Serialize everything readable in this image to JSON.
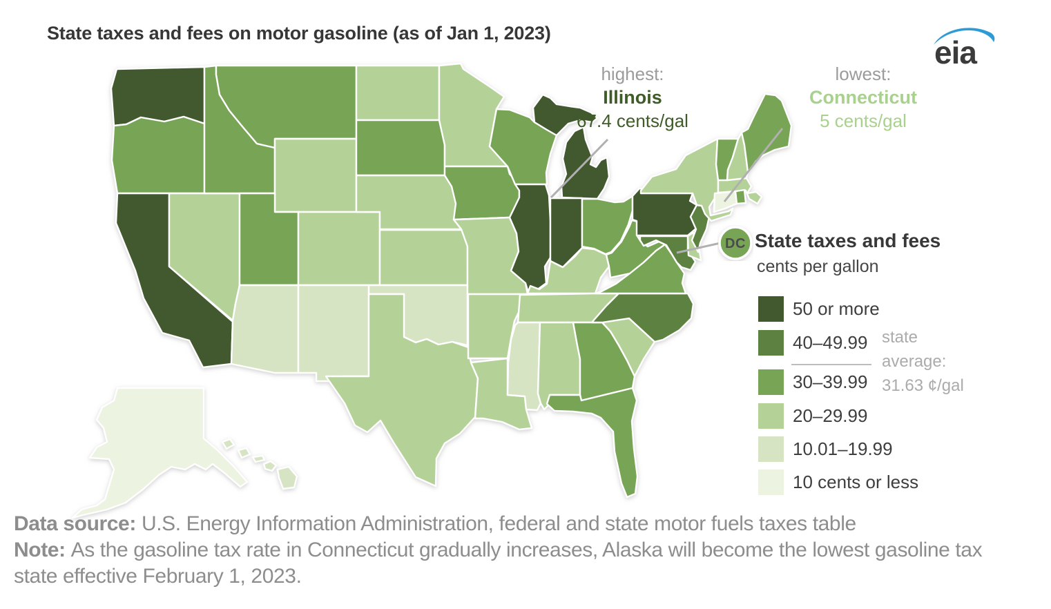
{
  "title": "State taxes and fees on motor gasoline (as of Jan 1, 2023)",
  "logo": {
    "text": "eia",
    "swoosh_color": "#2e9bd5",
    "text_color": "#3b3b3b"
  },
  "annotations": {
    "highest": {
      "label": "highest:",
      "state": "Illinois",
      "value": "67.4 cents/gal"
    },
    "lowest": {
      "label": "lowest:",
      "state": "Connecticut",
      "value": "5 cents/gal"
    }
  },
  "dc_marker": {
    "label": "DC",
    "category": "30–39.99"
  },
  "legend": {
    "title": "State taxes and fees",
    "subtitle": "cents per gallon",
    "items": [
      {
        "label": "50 or more",
        "color": "#42582e"
      },
      {
        "label": "40–49.99",
        "color": "#5d8141"
      },
      {
        "label": "30–39.99",
        "color": "#77a455"
      },
      {
        "label": "20–29.99",
        "color": "#b4d298"
      },
      {
        "label": "10.01–19.99",
        "color": "#d7e4c3"
      },
      {
        "label": "10 cents or less",
        "color": "#edf3e1"
      }
    ],
    "average": {
      "line1": "state",
      "line2": "average:",
      "line3": "31.63 ¢/gal"
    }
  },
  "footer": {
    "source_label": "Data source:",
    "source_text": "U.S. Energy Information Administration, federal and state motor fuels taxes table",
    "note_label": "Note:",
    "note_text": "As the gasoline tax rate in Connecticut gradually increases, Alaska will become the lowest gasoline tax state effective February 1, 2023."
  },
  "map_data": {
    "type": "choropleth",
    "unit": "cents per gallon",
    "category_colors": {
      "50 or more": "#42582e",
      "40–49.99": "#5d8141",
      "30–39.99": "#77a455",
      "20–29.99": "#b4d298",
      "10.01–19.99": "#d7e4c3",
      "10 cents or less": "#edf3e1"
    },
    "states": [
      {
        "abbr": "WA",
        "name": "Washington",
        "category": "50 or more"
      },
      {
        "abbr": "OR",
        "name": "Oregon",
        "category": "30–39.99"
      },
      {
        "abbr": "CA",
        "name": "California",
        "category": "50 or more"
      },
      {
        "abbr": "NV",
        "name": "Nevada",
        "category": "20–29.99"
      },
      {
        "abbr": "ID",
        "name": "Idaho",
        "category": "30–39.99"
      },
      {
        "abbr": "MT",
        "name": "Montana",
        "category": "30–39.99"
      },
      {
        "abbr": "WY",
        "name": "Wyoming",
        "category": "20–29.99"
      },
      {
        "abbr": "UT",
        "name": "Utah",
        "category": "30–39.99"
      },
      {
        "abbr": "CO",
        "name": "Colorado",
        "category": "20–29.99"
      },
      {
        "abbr": "AZ",
        "name": "Arizona",
        "category": "10.01–19.99"
      },
      {
        "abbr": "NM",
        "name": "New Mexico",
        "category": "10.01–19.99"
      },
      {
        "abbr": "ND",
        "name": "North Dakota",
        "category": "20–29.99"
      },
      {
        "abbr": "SD",
        "name": "South Dakota",
        "category": "30–39.99"
      },
      {
        "abbr": "NE",
        "name": "Nebraska",
        "category": "20–29.99"
      },
      {
        "abbr": "KS",
        "name": "Kansas",
        "category": "20–29.99"
      },
      {
        "abbr": "OK",
        "name": "Oklahoma",
        "category": "10.01–19.99"
      },
      {
        "abbr": "TX",
        "name": "Texas",
        "category": "20–29.99"
      },
      {
        "abbr": "MN",
        "name": "Minnesota",
        "category": "20–29.99"
      },
      {
        "abbr": "IA",
        "name": "Iowa",
        "category": "30–39.99"
      },
      {
        "abbr": "MO",
        "name": "Missouri",
        "category": "20–29.99"
      },
      {
        "abbr": "AR",
        "name": "Arkansas",
        "category": "20–29.99"
      },
      {
        "abbr": "LA",
        "name": "Louisiana",
        "category": "20–29.99"
      },
      {
        "abbr": "WI",
        "name": "Wisconsin",
        "category": "30–39.99"
      },
      {
        "abbr": "IL",
        "name": "Illinois",
        "category": "50 or more"
      },
      {
        "abbr": "MI",
        "name": "Michigan",
        "category": "50 or more"
      },
      {
        "abbr": "IN",
        "name": "Indiana",
        "category": "50 or more"
      },
      {
        "abbr": "OH",
        "name": "Ohio",
        "category": "30–39.99"
      },
      {
        "abbr": "KY",
        "name": "Kentucky",
        "category": "20–29.99"
      },
      {
        "abbr": "TN",
        "name": "Tennessee",
        "category": "20–29.99"
      },
      {
        "abbr": "MS",
        "name": "Mississippi",
        "category": "10.01–19.99"
      },
      {
        "abbr": "AL",
        "name": "Alabama",
        "category": "20–29.99"
      },
      {
        "abbr": "GA",
        "name": "Georgia",
        "category": "30–39.99"
      },
      {
        "abbr": "FL",
        "name": "Florida",
        "category": "30–39.99"
      },
      {
        "abbr": "SC",
        "name": "South Carolina",
        "category": "20–29.99"
      },
      {
        "abbr": "NC",
        "name": "North Carolina",
        "category": "40–49.99"
      },
      {
        "abbr": "VA",
        "name": "Virginia",
        "category": "30–39.99"
      },
      {
        "abbr": "WV",
        "name": "West Virginia",
        "category": "30–39.99"
      },
      {
        "abbr": "MD",
        "name": "Maryland",
        "category": "40–49.99"
      },
      {
        "abbr": "DE",
        "name": "Delaware",
        "category": "20–29.99"
      },
      {
        "abbr": "PA",
        "name": "Pennsylvania",
        "category": "50 or more"
      },
      {
        "abbr": "NJ",
        "name": "New Jersey",
        "category": "40–49.99"
      },
      {
        "abbr": "NY",
        "name": "New York",
        "category": "20–29.99"
      },
      {
        "abbr": "CT",
        "name": "Connecticut",
        "category": "10 cents or less"
      },
      {
        "abbr": "RI",
        "name": "Rhode Island",
        "category": "30–39.99"
      },
      {
        "abbr": "MA",
        "name": "Massachusetts",
        "category": "20–29.99"
      },
      {
        "abbr": "VT",
        "name": "Vermont",
        "category": "30–39.99"
      },
      {
        "abbr": "NH",
        "name": "New Hampshire",
        "category": "20–29.99"
      },
      {
        "abbr": "ME",
        "name": "Maine",
        "category": "30–39.99"
      },
      {
        "abbr": "AK",
        "name": "Alaska",
        "category": "10 cents or less"
      },
      {
        "abbr": "HI",
        "name": "Hawaii",
        "category": "10.01–19.99"
      }
    ]
  }
}
